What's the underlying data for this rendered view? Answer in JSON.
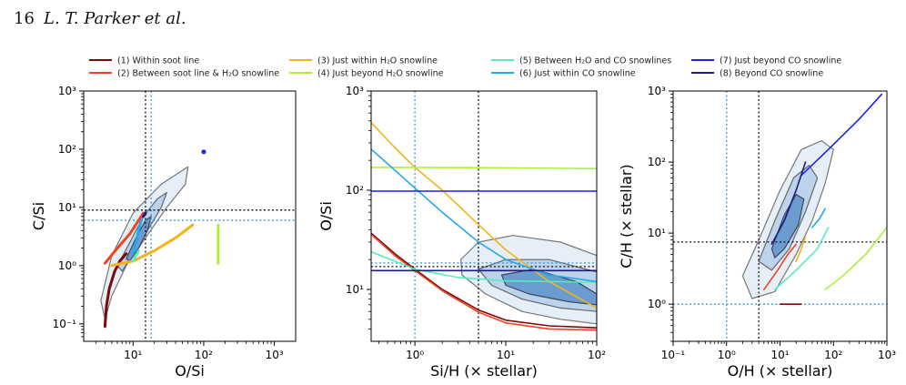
{
  "header": {
    "page_number": "16",
    "running_head": "L. T. Parker et al."
  },
  "legend": [
    {
      "label": "(1) Within soot line",
      "color": "#7a0a0a"
    },
    {
      "label": "(2) Between soot line & H₂O snowline",
      "color": "#ee4422"
    },
    {
      "label": "(3) Just within H₂O snowline",
      "color": "#f5b21a"
    },
    {
      "label": "(4) Just beyond H₂O snowline",
      "color": "#adf03a"
    },
    {
      "label": "(5) Between H₂O and CO snowlines",
      "color": "#55eebb"
    },
    {
      "label": "(6) Just within CO snowline",
      "color": "#22a8ee"
    },
    {
      "label": "(7) Just beyond CO snowline",
      "color": "#1a22ee"
    },
    {
      "label": "(8) Beyond CO snowline",
      "color": "#1a1a80"
    }
  ],
  "chart_data": [
    {
      "type": "line",
      "xlabel": "O/Si",
      "ylabel": "C/Si",
      "xscale": "log",
      "yscale": "log",
      "xlim": [
        2,
        2000
      ],
      "ylim": [
        0.05,
        1000
      ],
      "xticks": [
        "10¹",
        "10²",
        "10³"
      ],
      "yticks": [
        "10⁻¹",
        "10⁰",
        "10¹",
        "10²",
        "10³"
      ],
      "reference_lines": [
        {
          "axis": "x",
          "value": 15,
          "style": "black-dotted"
        },
        {
          "axis": "x",
          "value": 18,
          "style": "blue-dotted"
        },
        {
          "axis": "y",
          "value": 9,
          "style": "black-dotted"
        },
        {
          "axis": "y",
          "value": 6,
          "style": "blue-dotted"
        }
      ],
      "series": [
        {
          "name": "(1) Within soot line",
          "x": [
            4,
            4.2,
            4.6,
            5.5,
            6.5,
            8
          ],
          "y": [
            0.09,
            0.2,
            0.4,
            0.8,
            1.2,
            1.6
          ]
        },
        {
          "name": "(2) Between soot line & H₂O snowline",
          "x": [
            4,
            6,
            9,
            12,
            14
          ],
          "y": [
            1.1,
            2,
            3.5,
            6,
            8
          ]
        },
        {
          "name": "(3) Just within H₂O snowline",
          "x": [
            5,
            10,
            20,
            40,
            70
          ],
          "y": [
            1,
            1.2,
            1.8,
            3,
            5
          ]
        },
        {
          "name": "(4) Just beyond H₂O snowline",
          "x": [
            160,
            160,
            160
          ],
          "y": [
            1.1,
            2,
            5
          ]
        },
        {
          "name": "(5) Between H₂O and CO snowlines",
          "x": [
            10,
            11,
            12
          ],
          "y": [
            1.2,
            1.5,
            1.8
          ]
        },
        {
          "name": "(6) Just within CO snowline",
          "x": [
            10,
            11,
            12,
            13
          ],
          "y": [
            1.6,
            2.5,
            4,
            6
          ]
        },
        {
          "name": "(7) Just beyond CO snowline",
          "x": [
            100
          ],
          "y": [
            90
          ]
        },
        {
          "name": "(8) Beyond CO snowline",
          "x": [
            14,
            15
          ],
          "y": [
            7,
            8
          ]
        }
      ]
    },
    {
      "type": "line",
      "xlabel": "Si/H (× stellar)",
      "ylabel": "O/Si",
      "xscale": "log",
      "yscale": "log",
      "xlim": [
        0.33,
        100
      ],
      "ylim": [
        3,
        1000
      ],
      "xticks": [
        "10⁰",
        "10¹",
        "10²"
      ],
      "yticks": [
        "10¹",
        "10²",
        "10³"
      ],
      "reference_lines": [
        {
          "axis": "x",
          "value": 1,
          "style": "blue-dotted"
        },
        {
          "axis": "x",
          "value": 5,
          "style": "black-dotted"
        },
        {
          "axis": "y",
          "value": 17,
          "style": "black-dotted"
        },
        {
          "axis": "y",
          "value": 18.5,
          "style": "blue-dotted"
        }
      ],
      "series": [
        {
          "name": "(1) Within soot line",
          "x": [
            0.33,
            0.6,
            1,
            2,
            5,
            10,
            30,
            100
          ],
          "y": [
            37,
            23,
            16,
            10,
            6.2,
            4.9,
            4.3,
            4.1
          ]
        },
        {
          "name": "(2) Between soot line & H₂O snowline",
          "x": [
            0.33,
            0.6,
            1,
            2,
            5,
            10,
            30,
            100
          ],
          "y": [
            36,
            22,
            15.5,
            9.7,
            5.9,
            4.6,
            4,
            3.9
          ]
        },
        {
          "name": "(3) Just within H₂O snowline",
          "x": [
            0.33,
            0.6,
            1,
            2,
            5,
            10,
            30,
            100
          ],
          "y": [
            480,
            270,
            170,
            100,
            45,
            25,
            12,
            6.5
          ]
        },
        {
          "name": "(4) Just beyond H₂O snowline",
          "x": [
            0.33,
            1,
            10,
            100
          ],
          "y": [
            170,
            170,
            168,
            165
          ]
        },
        {
          "name": "(5) Between H₂O and CO snowlines",
          "x": [
            0.33,
            1,
            3,
            10,
            100
          ],
          "y": [
            24,
            16,
            13.2,
            12.2,
            11.8
          ]
        },
        {
          "name": "(6) Just within CO snowline",
          "x": [
            0.33,
            0.6,
            1,
            2,
            5,
            10,
            30,
            100
          ],
          "y": [
            260,
            160,
            105,
            60,
            30,
            20,
            14,
            12
          ]
        },
        {
          "name": "(7) Just beyond CO snowline",
          "x": [
            0.33,
            100
          ],
          "y": [
            98,
            98
          ]
        },
        {
          "name": "(8) Beyond CO snowline",
          "x": [
            0.33,
            100
          ],
          "y": [
            15.5,
            15.5
          ]
        }
      ]
    },
    {
      "type": "line",
      "xlabel": "O/H (× stellar)",
      "ylabel": "C/H (× stellar)",
      "xscale": "log",
      "yscale": "log",
      "xlim": [
        0.1,
        1000
      ],
      "ylim": [
        0.3,
        1000
      ],
      "xticks": [
        "10⁻¹",
        "10⁰",
        "10¹",
        "10²",
        "10³"
      ],
      "yticks": [
        "10⁰",
        "10¹",
        "10²",
        "10³"
      ],
      "reference_lines": [
        {
          "axis": "x",
          "value": 1,
          "style": "blue-dotted"
        },
        {
          "axis": "x",
          "value": 4,
          "style": "black-dotted"
        },
        {
          "axis": "y",
          "value": 7.5,
          "style": "black-dotted"
        },
        {
          "axis": "y",
          "value": 1,
          "style": "blue-dotted"
        }
      ],
      "series": [
        {
          "name": "(1) Within soot line",
          "x": [
            10,
            15,
            20,
            25
          ],
          "y": [
            1,
            1,
            1,
            1
          ]
        },
        {
          "name": "(2) Between soot line & H₂O snowline",
          "x": [
            5,
            9,
            14,
            20
          ],
          "y": [
            1.6,
            3,
            5,
            7
          ]
        },
        {
          "name": "(3) Just within H₂O snowline",
          "x": [
            20,
            25,
            30
          ],
          "y": [
            4,
            6,
            9
          ]
        },
        {
          "name": "(4) Just beyond H₂O snowline",
          "x": [
            70,
            150,
            400,
            1000
          ],
          "y": [
            1.6,
            2.5,
            5,
            12
          ]
        },
        {
          "name": "(5) Between H₂O and CO snowlines",
          "x": [
            8,
            20,
            50,
            80
          ],
          "y": [
            1.6,
            3,
            6,
            12
          ]
        },
        {
          "name": "(6) Just within CO snowline",
          "x": [
            40,
            55,
            70
          ],
          "y": [
            12,
            16,
            22
          ]
        },
        {
          "name": "(7) Just beyond CO snowline",
          "x": [
            25,
            80,
            300,
            800
          ],
          "y": [
            65,
            150,
            400,
            900
          ]
        },
        {
          "name": "(8) Beyond CO snowline",
          "x": [
            7,
            12,
            20,
            30
          ],
          "y": [
            7,
            15,
            40,
            100
          ]
        }
      ]
    }
  ]
}
